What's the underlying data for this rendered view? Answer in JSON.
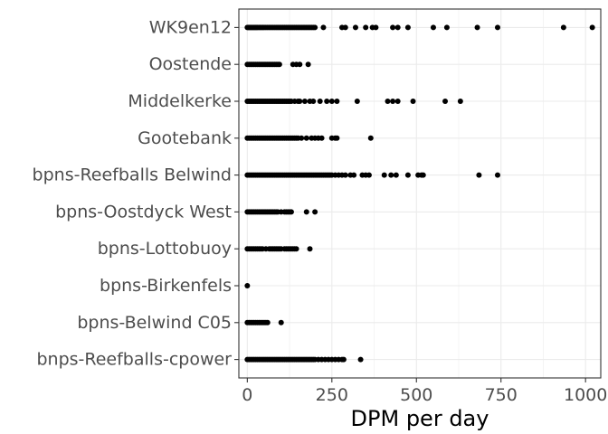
{
  "chart_data": {
    "type": "scatter",
    "title": "",
    "xlabel": "DPM per day",
    "ylabel": "",
    "xlim": [
      -25,
      1045
    ],
    "x_ticks": [
      0,
      250,
      500,
      750,
      1000
    ],
    "x_tick_labels": [
      "0",
      "250",
      "500",
      "750",
      "1000"
    ],
    "grid": true,
    "point_color": "#000000",
    "categories": [
      "WK9en12",
      "Oostende",
      "Middelkerke",
      "Gootebank",
      "bpns-Reefballs Belwind",
      "bpns-Oostdyck West",
      "bpns-Lottobuoy",
      "bpns-Birkenfels",
      "bpns-Belwind C05",
      "bnps-Reefballs-cpower"
    ],
    "series": [
      {
        "category": "WK9en12",
        "x": [
          0,
          3,
          6,
          9,
          12,
          15,
          18,
          21,
          24,
          27,
          30,
          34,
          38,
          42,
          46,
          50,
          55,
          60,
          65,
          70,
          75,
          80,
          85,
          90,
          95,
          100,
          105,
          110,
          115,
          120,
          125,
          130,
          135,
          140,
          145,
          150,
          155,
          160,
          165,
          170,
          175,
          180,
          185,
          190,
          195,
          200,
          225,
          280,
          290,
          320,
          350,
          370,
          380,
          430,
          445,
          475,
          550,
          590,
          680,
          740,
          935,
          1020
        ]
      },
      {
        "category": "Oostende",
        "x": [
          0,
          5,
          10,
          15,
          20,
          25,
          30,
          35,
          40,
          45,
          50,
          55,
          60,
          65,
          70,
          75,
          80,
          85,
          90,
          95,
          135,
          145,
          155,
          180
        ]
      },
      {
        "category": "Middelkerke",
        "x": [
          0,
          5,
          10,
          15,
          20,
          25,
          30,
          35,
          40,
          45,
          50,
          55,
          60,
          65,
          70,
          75,
          80,
          85,
          90,
          95,
          100,
          105,
          110,
          115,
          120,
          125,
          130,
          140,
          150,
          155,
          170,
          185,
          195,
          215,
          235,
          250,
          265,
          325,
          415,
          430,
          445,
          490,
          585,
          630
        ]
      },
      {
        "category": "Gootebank",
        "x": [
          0,
          5,
          10,
          15,
          20,
          25,
          30,
          35,
          40,
          45,
          50,
          55,
          60,
          65,
          70,
          75,
          80,
          85,
          90,
          95,
          100,
          105,
          110,
          115,
          120,
          125,
          130,
          135,
          140,
          145,
          150,
          160,
          175,
          190,
          200,
          210,
          220,
          250,
          260,
          265,
          365
        ]
      },
      {
        "category": "bpns-Reefballs Belwind",
        "x": [
          0,
          5,
          10,
          15,
          20,
          25,
          30,
          35,
          40,
          45,
          50,
          55,
          60,
          65,
          70,
          75,
          80,
          85,
          90,
          95,
          100,
          105,
          110,
          115,
          120,
          125,
          130,
          135,
          140,
          145,
          150,
          155,
          160,
          165,
          170,
          175,
          180,
          185,
          190,
          195,
          200,
          205,
          210,
          215,
          220,
          225,
          230,
          235,
          240,
          245,
          250,
          260,
          270,
          280,
          290,
          305,
          315,
          340,
          350,
          360,
          405,
          425,
          440,
          475,
          505,
          515,
          520,
          685,
          740
        ]
      },
      {
        "category": "bpns-Oostdyck West",
        "x": [
          0,
          5,
          10,
          15,
          20,
          25,
          30,
          35,
          40,
          45,
          50,
          55,
          60,
          65,
          70,
          75,
          80,
          85,
          90,
          100,
          110,
          115,
          120,
          125,
          130,
          175,
          200
        ]
      },
      {
        "category": "bpns-Lottobuoy",
        "x": [
          0,
          5,
          10,
          15,
          20,
          25,
          30,
          35,
          40,
          45,
          55,
          65,
          70,
          75,
          80,
          85,
          90,
          95,
          100,
          110,
          115,
          120,
          125,
          130,
          135,
          140,
          145,
          185
        ]
      },
      {
        "category": "bpns-Birkenfels",
        "x": [
          0
        ]
      },
      {
        "category": "bpns-Belwind C05",
        "x": [
          0,
          5,
          10,
          15,
          20,
          25,
          30,
          35,
          40,
          45,
          50,
          55,
          60,
          100
        ]
      },
      {
        "category": "bnps-Reefballs-cpower",
        "x": [
          0,
          5,
          10,
          15,
          20,
          25,
          30,
          35,
          40,
          45,
          50,
          55,
          60,
          65,
          70,
          75,
          80,
          85,
          90,
          95,
          100,
          105,
          110,
          115,
          120,
          125,
          130,
          135,
          140,
          145,
          150,
          155,
          160,
          165,
          170,
          175,
          180,
          185,
          190,
          195,
          200,
          210,
          220,
          230,
          240,
          250,
          260,
          270,
          280,
          285,
          335
        ]
      }
    ]
  }
}
